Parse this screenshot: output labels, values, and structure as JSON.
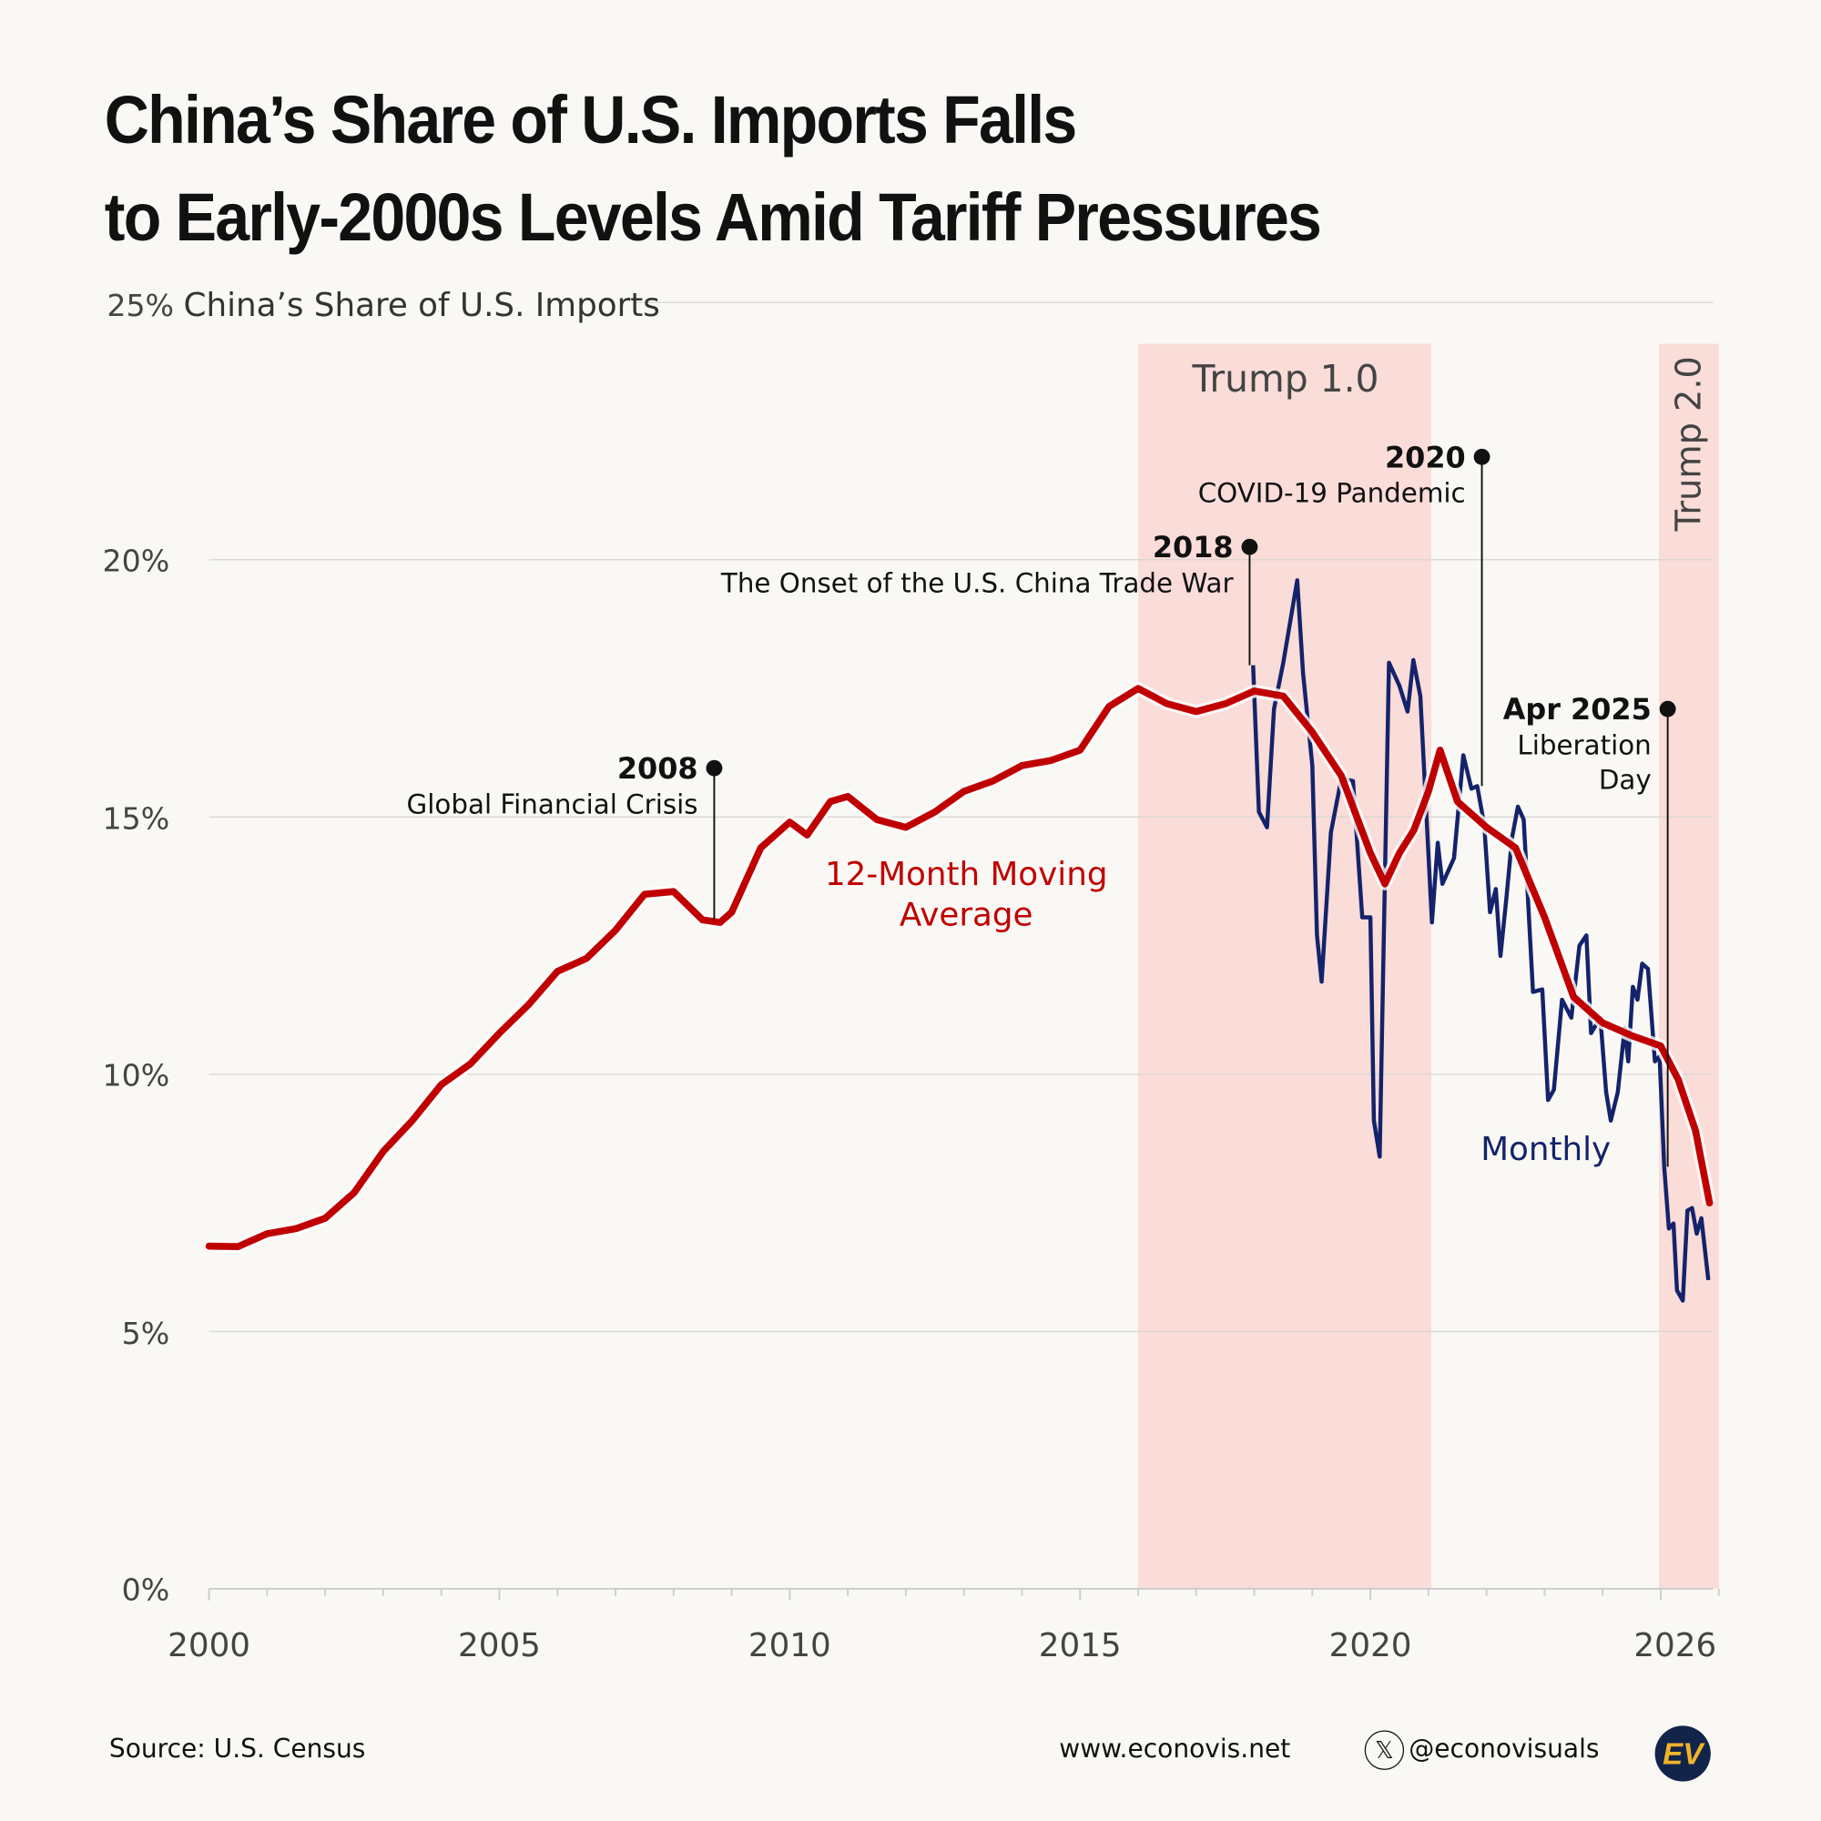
{
  "title": {
    "line1": "China’s Share of U.S. Imports Falls",
    "line2": "to Early-2000s Levels Amid Tariff Pressures"
  },
  "chart_data": {
    "type": "line",
    "ylabel": "China’s Share of U.S. Imports",
    "ylim": [
      0,
      25
    ],
    "xlim": [
      2000,
      2026
    ],
    "y_ticks": [
      "0%",
      "5%",
      "10%",
      "15%",
      "20%",
      "25%"
    ],
    "x_ticks": [
      "2000",
      "2005",
      "2010",
      "2015",
      "2020",
      "2026"
    ],
    "grid": true,
    "colors": {
      "moving_average": "#c00000",
      "monthly": "#14236b",
      "band": "#fadcd8"
    },
    "shaded_periods": [
      {
        "label": "Trump 1.0",
        "start": 2016.0,
        "end": 2021.05
      },
      {
        "label": "Trump 2.0",
        "start": 2024.97,
        "end": 2026.0
      }
    ],
    "series": [
      {
        "name": "12-Month Moving Average",
        "label_lines": [
          "12-Month Moving",
          "Average"
        ],
        "x": [
          2000.0,
          2000.5,
          2001.0,
          2001.5,
          2002.0,
          2002.5,
          2003.0,
          2003.5,
          2004.0,
          2004.5,
          2005.0,
          2005.5,
          2006.0,
          2006.5,
          2007.0,
          2007.5,
          2008.0,
          2008.5,
          2008.8,
          2009.0,
          2009.5,
          2010.0,
          2010.3,
          2010.7,
          2011.0,
          2011.5,
          2012.0,
          2012.5,
          2013.0,
          2013.5,
          2014.0,
          2014.5,
          2015.0,
          2015.5,
          2016.0,
          2016.5,
          2017.0,
          2017.5,
          2018.0,
          2018.5,
          2019.0,
          2019.5,
          2020.0,
          2020.25,
          2020.5,
          2020.75,
          2021.0,
          2021.2,
          2021.5,
          2022.0,
          2022.5,
          2023.0,
          2023.5,
          2024.0,
          2024.5,
          2025.0,
          2025.3,
          2025.6,
          2025.84
        ],
        "values": [
          6.66,
          6.65,
          6.9,
          7.0,
          7.2,
          7.7,
          8.5,
          9.1,
          9.8,
          10.2,
          10.8,
          11.35,
          12.0,
          12.25,
          12.8,
          13.5,
          13.55,
          13.0,
          12.95,
          13.15,
          14.4,
          14.9,
          14.65,
          15.3,
          15.4,
          14.95,
          14.8,
          15.1,
          15.5,
          15.7,
          16.0,
          16.1,
          16.3,
          17.15,
          17.5,
          17.2,
          17.05,
          17.2,
          17.45,
          17.35,
          16.65,
          15.8,
          14.3,
          13.7,
          14.3,
          14.75,
          15.5,
          16.3,
          15.3,
          14.8,
          14.4,
          13.05,
          11.5,
          11.0,
          10.75,
          10.55,
          9.9,
          8.9,
          7.5
        ]
      },
      {
        "name": "Monthly",
        "x": [
          2017.98,
          2018.08,
          2018.22,
          2018.34,
          2018.5,
          2018.74,
          2018.84,
          2019.0,
          2019.08,
          2019.16,
          2019.32,
          2019.5,
          2019.7,
          2019.86,
          2020.0,
          2020.06,
          2020.16,
          2020.32,
          2020.5,
          2020.64,
          2020.74,
          2020.86,
          2021.06,
          2021.16,
          2021.24,
          2021.44,
          2021.6,
          2021.74,
          2021.84,
          2021.96,
          2022.06,
          2022.16,
          2022.24,
          2022.34,
          2022.44,
          2022.54,
          2022.64,
          2022.8,
          2022.96,
          2023.06,
          2023.16,
          2023.3,
          2023.46,
          2023.6,
          2023.72,
          2023.8,
          2023.96,
          2024.06,
          2024.14,
          2024.26,
          2024.38,
          2024.44,
          2024.52,
          2024.6,
          2024.68,
          2024.78,
          2024.9,
          2024.98,
          2025.06,
          2025.14,
          2025.22,
          2025.28,
          2025.38,
          2025.46,
          2025.54,
          2025.62,
          2025.7,
          2025.82
        ],
        "values": [
          17.95,
          15.1,
          14.8,
          17.1,
          18.0,
          19.6,
          17.8,
          16.0,
          12.7,
          11.8,
          14.7,
          15.75,
          15.7,
          13.05,
          13.05,
          9.1,
          8.4,
          18.0,
          17.55,
          17.05,
          18.05,
          17.35,
          12.95,
          14.5,
          13.7,
          14.2,
          16.2,
          15.55,
          15.6,
          14.85,
          13.15,
          13.6,
          12.3,
          13.4,
          14.6,
          15.2,
          14.95,
          11.6,
          11.65,
          9.5,
          9.7,
          11.45,
          11.1,
          12.5,
          12.7,
          10.8,
          11.1,
          9.65,
          9.1,
          9.65,
          10.9,
          10.25,
          11.7,
          11.45,
          12.15,
          12.05,
          10.25,
          10.35,
          8.2,
          7.0,
          7.1,
          5.8,
          5.6,
          7.35,
          7.4,
          6.9,
          7.2,
          6.0
        ]
      }
    ],
    "annotations": [
      {
        "year": "2008",
        "text": "Global Financial Crisis",
        "x": 2008.7,
        "y": 15.95
      },
      {
        "year": "2018",
        "text": "The Onset of the U.S. China Trade War",
        "x": 2017.92,
        "y": 20.25
      },
      {
        "year": "2020",
        "text": "COVID-19 Pandemic",
        "x": 2021.92,
        "y": 22.0
      },
      {
        "year": "Apr 2025",
        "text": "Liberation Day",
        "text_lines": [
          "Liberation",
          "Day"
        ],
        "x": 2025.12,
        "y": 17.1
      }
    ]
  },
  "footer": {
    "source": "Source: U.S. Census",
    "website": "www.econovis.net",
    "handle": "@econovisuals",
    "logo": "EV",
    "x_icon": "x-logo-icon"
  }
}
